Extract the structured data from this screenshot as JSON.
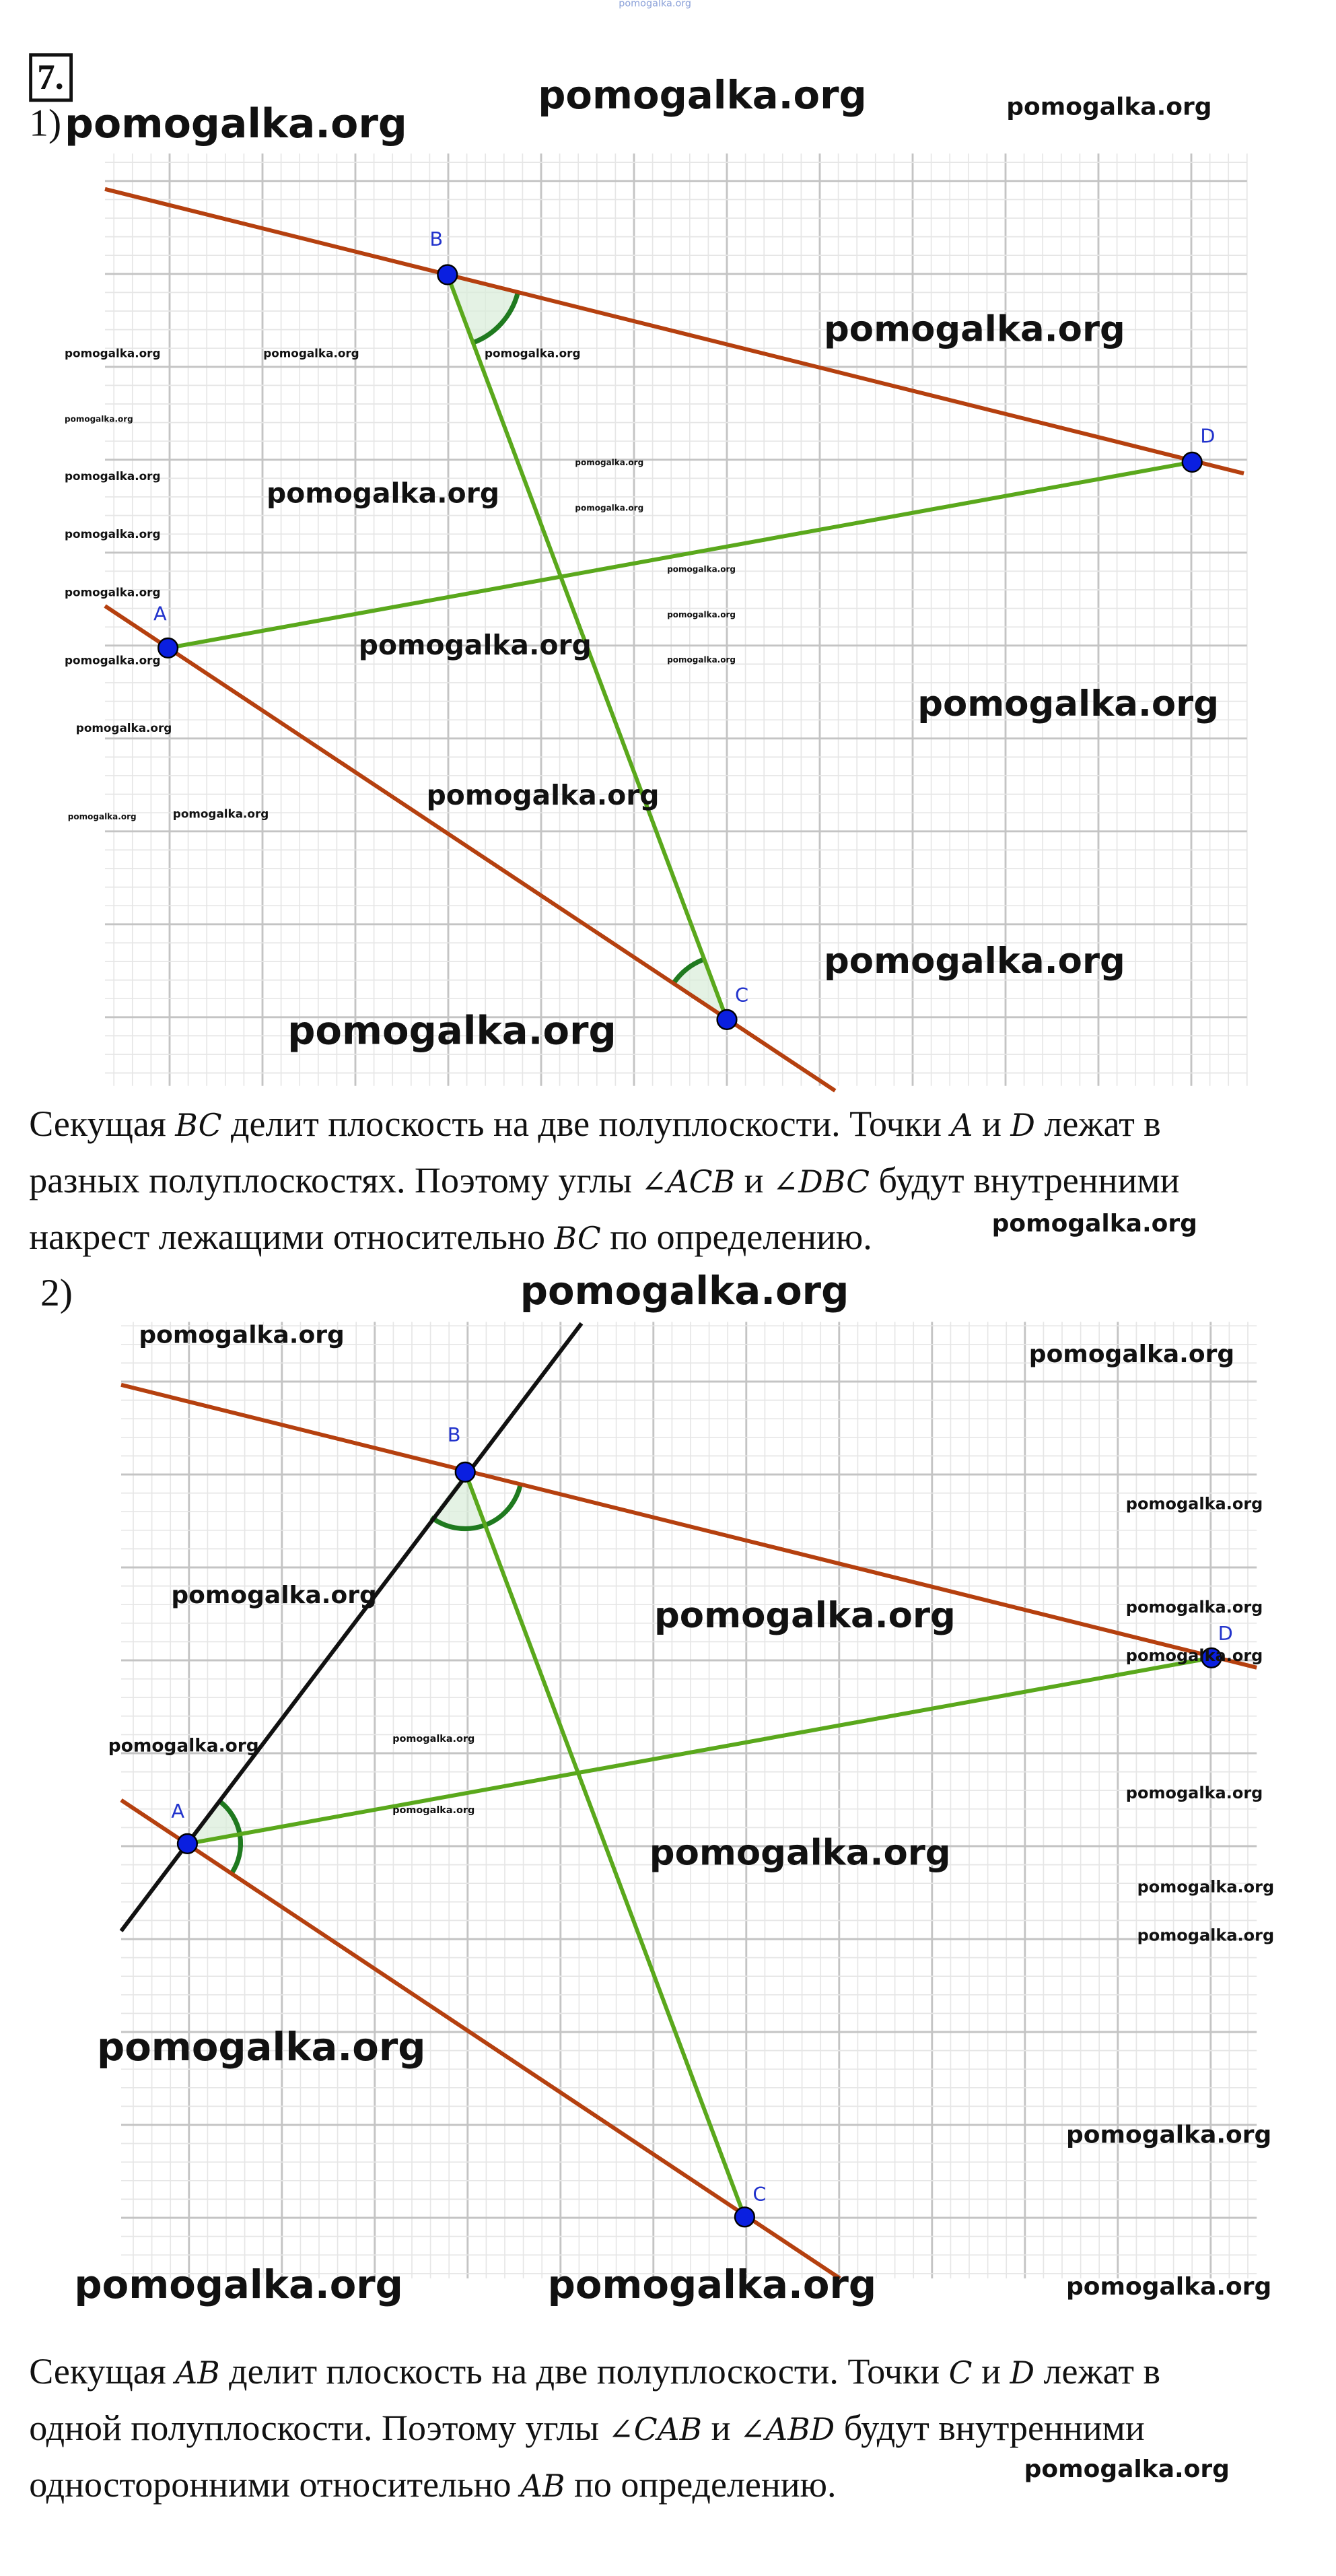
{
  "task_number": "7.",
  "part1": {
    "label": "1)",
    "points": {
      "A": "A",
      "B": "B",
      "C": "C",
      "D": "D"
    },
    "text_lines": [
      [
        {
          "t": "Секущая "
        },
        {
          "m": "BC"
        },
        {
          "t": " делит плоскость на две полуплоскости. Точки "
        },
        {
          "m": "A"
        },
        {
          "t": " и "
        },
        {
          "m": "D"
        },
        {
          "t": " лежат в"
        }
      ],
      [
        {
          "t": "разных полуплоскостях. Поэтому углы "
        },
        {
          "m": "∠ACB"
        },
        {
          "t": " и "
        },
        {
          "m": "∠DBC"
        },
        {
          "t": " будут внутренними"
        }
      ],
      [
        {
          "t": "накрест лежащими относительно "
        },
        {
          "m": "BC"
        },
        {
          "t": " по определению."
        }
      ]
    ]
  },
  "part2": {
    "label": "2)",
    "points": {
      "A": "A",
      "B": "B",
      "C": "C",
      "D": "D"
    },
    "text_lines": [
      [
        {
          "t": "Секущая "
        },
        {
          "m": "AB"
        },
        {
          "t": " делит плоскость на две полуплоскости. Точки "
        },
        {
          "m": "C"
        },
        {
          "t": " и "
        },
        {
          "m": "D"
        },
        {
          "t": " лежат в"
        }
      ],
      [
        {
          "t": "одной полуплоскости. Поэтому углы "
        },
        {
          "m": "∠CAB"
        },
        {
          "t": " и "
        },
        {
          "m": "∠ABD"
        },
        {
          "t": " будут внутренними"
        }
      ],
      [
        {
          "t": "односторонними относительно "
        },
        {
          "m": "AB"
        },
        {
          "t": " по определению."
        }
      ]
    ]
  },
  "watermark": "pomogalka.org",
  "colors": {
    "line_red": "#b5400f",
    "line_green": "#5aa81c",
    "line_black": "#111111",
    "point": "#0a1fe0",
    "arc": "#1f7a1f",
    "grid_major": "#c4c4c4",
    "grid_minor": "#e6e6e6"
  }
}
